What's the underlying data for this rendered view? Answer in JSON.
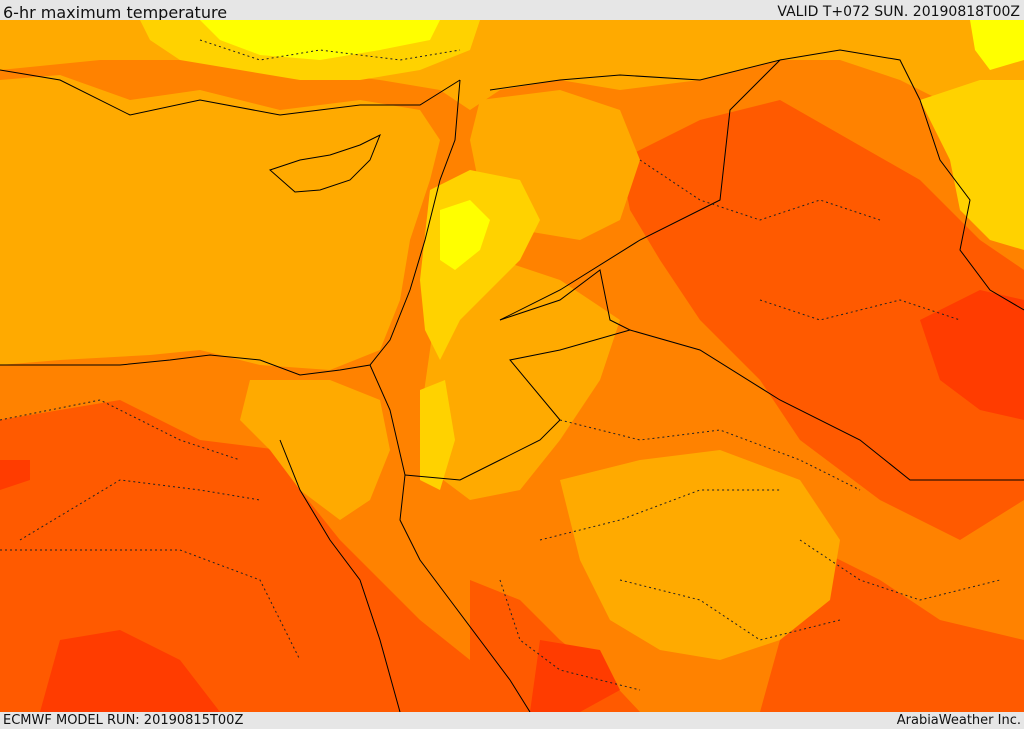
{
  "header": {
    "title": "6-hr maximum temperature",
    "valid": "VALID T+072 SUN. 20190818T00Z"
  },
  "footer": {
    "model_run": "ECMWF MODEL RUN: 20190815T00Z",
    "credit": "ArabiaWeather Inc."
  },
  "map": {
    "colors": {
      "yellow": "#ffff00",
      "light_orange": "#ffd200",
      "amber": "#ffaa00",
      "orange": "#ff8200",
      "dark_orange": "#ff5a00",
      "red_orange": "#ff3c00",
      "border": "#000000"
    }
  }
}
